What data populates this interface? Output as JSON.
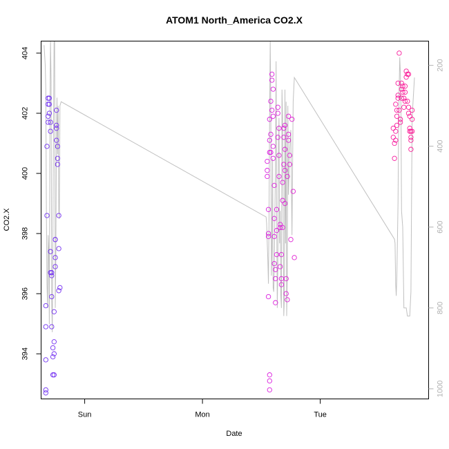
{
  "chart_data": {
    "type": "scatter",
    "title": "ATOM1 North_America CO2.X",
    "xlabel": "Date",
    "ylabel": "CO2.X",
    "x_ticks": [
      "Sun",
      "Mon",
      "Tue"
    ],
    "y_ticks": [
      "394",
      "396",
      "398",
      "400",
      "402",
      "404"
    ],
    "y2_ticks": [
      "200",
      "400",
      "600",
      "800",
      "1000"
    ],
    "xlim": [
      -0.37,
      2.92
    ],
    "ylim": [
      392.5,
      404.4
    ],
    "y2lim": [
      1025,
      140
    ],
    "grid": false,
    "colors": {
      "axis": "#000000",
      "secondary_line": "#c0c0c0",
      "secondary_axis": "#b0b0b0",
      "points_start": "#6a2ef0",
      "points_mid": "#d21ef0",
      "points_end": "#ff1a8c"
    },
    "series": [
      {
        "kind": "points",
        "values": [
          [
            -0.33,
            392.7
          ],
          [
            -0.33,
            392.8
          ],
          [
            -0.33,
            393.8
          ],
          [
            -0.33,
            394.9
          ],
          [
            -0.33,
            395.6
          ],
          [
            -0.32,
            398.6
          ],
          [
            -0.32,
            400.9
          ],
          [
            -0.31,
            401.7
          ],
          [
            -0.31,
            401.9
          ],
          [
            -0.31,
            402.3
          ],
          [
            -0.31,
            402.5
          ],
          [
            -0.3,
            402.5
          ],
          [
            -0.3,
            402.3
          ],
          [
            -0.3,
            402.0
          ],
          [
            -0.29,
            401.7
          ],
          [
            -0.29,
            401.4
          ],
          [
            -0.29,
            397.4
          ],
          [
            -0.29,
            396.7
          ],
          [
            -0.28,
            396.7
          ],
          [
            -0.28,
            396.6
          ],
          [
            -0.28,
            395.9
          ],
          [
            -0.28,
            394.9
          ],
          [
            -0.27,
            394.2
          ],
          [
            -0.27,
            393.9
          ],
          [
            -0.27,
            393.3
          ],
          [
            -0.26,
            393.3
          ],
          [
            -0.26,
            394.0
          ],
          [
            -0.26,
            394.4
          ],
          [
            -0.26,
            395.4
          ],
          [
            -0.25,
            396.9
          ],
          [
            -0.25,
            397.2
          ],
          [
            -0.25,
            397.8
          ],
          [
            -0.25,
            397.8
          ],
          [
            -0.24,
            401.6
          ],
          [
            -0.24,
            401.5
          ],
          [
            -0.24,
            402.1
          ],
          [
            -0.24,
            401.1
          ],
          [
            -0.23,
            400.9
          ],
          [
            -0.23,
            400.5
          ],
          [
            -0.23,
            400.3
          ],
          [
            -0.22,
            398.6
          ],
          [
            -0.22,
            397.5
          ],
          [
            -0.22,
            396.1
          ],
          [
            -0.21,
            396.2
          ],
          [
            1.55,
            399.9
          ],
          [
            1.55,
            400.1
          ],
          [
            1.55,
            400.4
          ],
          [
            1.56,
            398.8
          ],
          [
            1.56,
            398.0
          ],
          [
            1.56,
            397.9
          ],
          [
            1.56,
            395.9
          ],
          [
            1.57,
            400.7
          ],
          [
            1.57,
            401.1
          ],
          [
            1.57,
            401.8
          ],
          [
            1.57,
            393.1
          ],
          [
            1.57,
            392.8
          ],
          [
            1.57,
            393.3
          ],
          [
            1.58,
            402.4
          ],
          [
            1.58,
            401.3
          ],
          [
            1.58,
            400.7
          ],
          [
            1.59,
            402.1
          ],
          [
            1.59,
            403.3
          ],
          [
            1.59,
            403.1
          ],
          [
            1.6,
            402.8
          ],
          [
            1.6,
            401.9
          ],
          [
            1.6,
            400.9
          ],
          [
            1.6,
            400.5
          ],
          [
            1.61,
            399.6
          ],
          [
            1.61,
            398.5
          ],
          [
            1.61,
            397.9
          ],
          [
            1.61,
            397.0
          ],
          [
            1.62,
            396.8
          ],
          [
            1.62,
            396.5
          ],
          [
            1.62,
            395.7
          ],
          [
            1.63,
            397.3
          ],
          [
            1.63,
            398.1
          ],
          [
            1.63,
            398.8
          ],
          [
            1.64,
            401.2
          ],
          [
            1.64,
            402.2
          ],
          [
            1.64,
            402.0
          ],
          [
            1.65,
            401.5
          ],
          [
            1.65,
            400.6
          ],
          [
            1.65,
            399.9
          ],
          [
            1.66,
            398.3
          ],
          [
            1.66,
            398.2
          ],
          [
            1.66,
            396.9
          ],
          [
            1.67,
            396.5
          ],
          [
            1.67,
            396.3
          ],
          [
            1.67,
            397.3
          ],
          [
            1.68,
            398.2
          ],
          [
            1.68,
            399.1
          ],
          [
            1.68,
            399.7
          ],
          [
            1.69,
            400.3
          ],
          [
            1.69,
            401.2
          ],
          [
            1.69,
            401.5
          ],
          [
            1.7,
            400.8
          ],
          [
            1.7,
            401.6
          ],
          [
            1.7,
            400.1
          ],
          [
            1.7,
            399.0
          ],
          [
            1.71,
            396.5
          ],
          [
            1.71,
            396.0
          ],
          [
            1.72,
            395.8
          ],
          [
            1.72,
            399.9
          ],
          [
            1.73,
            401.1
          ],
          [
            1.73,
            401.9
          ],
          [
            1.73,
            401.3
          ],
          [
            1.74,
            400.6
          ],
          [
            1.74,
            400.3
          ],
          [
            1.75,
            397.8
          ],
          [
            1.76,
            401.8
          ],
          [
            1.77,
            399.4
          ],
          [
            1.78,
            397.2
          ],
          [
            2.62,
            401.2
          ],
          [
            2.62,
            401.5
          ],
          [
            2.63,
            401.0
          ],
          [
            2.63,
            400.5
          ],
          [
            2.64,
            401.4
          ],
          [
            2.64,
            401.1
          ],
          [
            2.64,
            402.3
          ],
          [
            2.65,
            401.9
          ],
          [
            2.65,
            401.6
          ],
          [
            2.65,
            402.1
          ],
          [
            2.66,
            402.6
          ],
          [
            2.66,
            402.5
          ],
          [
            2.66,
            403.0
          ],
          [
            2.67,
            404.0
          ],
          [
            2.67,
            402.1
          ],
          [
            2.68,
            401.7
          ],
          [
            2.68,
            401.8
          ],
          [
            2.69,
            402.5
          ],
          [
            2.69,
            402.8
          ],
          [
            2.69,
            403.0
          ],
          [
            2.7,
            402.9
          ],
          [
            2.7,
            402.7
          ],
          [
            2.71,
            402.5
          ],
          [
            2.71,
            402.2
          ],
          [
            2.72,
            402.4
          ],
          [
            2.72,
            402.7
          ],
          [
            2.72,
            402.9
          ],
          [
            2.73,
            403.2
          ],
          [
            2.73,
            403.4
          ],
          [
            2.74,
            403.3
          ],
          [
            2.74,
            402.4
          ],
          [
            2.75,
            403.3
          ],
          [
            2.75,
            402.2
          ],
          [
            2.75,
            402.0
          ],
          [
            2.76,
            401.9
          ],
          [
            2.76,
            401.5
          ],
          [
            2.76,
            401.4
          ],
          [
            2.77,
            401.4
          ],
          [
            2.77,
            401.2
          ],
          [
            2.77,
            400.8
          ],
          [
            2.77,
            401.1
          ],
          [
            2.78,
            401.4
          ],
          [
            2.78,
            401.8
          ],
          [
            2.78,
            402.1
          ]
        ]
      },
      {
        "kind": "line",
        "axis": "right",
        "values": [
          [
            -0.345,
            150
          ],
          [
            -0.335,
            200
          ],
          [
            -0.33,
            260
          ],
          [
            -0.325,
            580
          ],
          [
            -0.32,
            740
          ],
          [
            -0.315,
            800
          ],
          [
            -0.31,
            620
          ],
          [
            -0.305,
            660
          ],
          [
            -0.3,
            840
          ],
          [
            -0.295,
            320
          ],
          [
            -0.29,
            140
          ],
          [
            -0.285,
            240
          ],
          [
            -0.28,
            780
          ],
          [
            -0.275,
            860
          ],
          [
            -0.27,
            620
          ],
          [
            -0.265,
            360
          ],
          [
            -0.26,
            140
          ],
          [
            -0.255,
            140
          ],
          [
            -0.25,
            800
          ],
          [
            -0.245,
            680
          ],
          [
            -0.24,
            380
          ],
          [
            -0.235,
            280
          ],
          [
            -0.23,
            420
          ],
          [
            -0.225,
            300
          ],
          [
            -0.22,
            560
          ],
          [
            -0.215,
            580
          ],
          [
            -0.21,
            300
          ],
          [
            -0.2,
            290
          ],
          [
            1.54,
            575
          ],
          [
            1.545,
            590
          ],
          [
            1.55,
            640
          ],
          [
            1.555,
            680
          ],
          [
            1.56,
            740
          ],
          [
            1.565,
            600
          ],
          [
            1.57,
            330
          ],
          [
            1.575,
            140
          ],
          [
            1.58,
            300
          ],
          [
            1.585,
            720
          ],
          [
            1.59,
            660
          ],
          [
            1.595,
            430
          ],
          [
            1.6,
            750
          ],
          [
            1.605,
            760
          ],
          [
            1.61,
            700
          ],
          [
            1.615,
            560
          ],
          [
            1.62,
            450
          ],
          [
            1.625,
            190
          ],
          [
            1.63,
            560
          ],
          [
            1.635,
            800
          ],
          [
            1.64,
            700
          ],
          [
            1.645,
            400
          ],
          [
            1.65,
            330
          ],
          [
            1.655,
            640
          ],
          [
            1.66,
            560
          ],
          [
            1.665,
            770
          ],
          [
            1.67,
            800
          ],
          [
            1.675,
            260
          ],
          [
            1.68,
            330
          ],
          [
            1.685,
            560
          ],
          [
            1.69,
            820
          ],
          [
            1.695,
            780
          ],
          [
            1.7,
            260
          ],
          [
            1.705,
            640
          ],
          [
            1.71,
            290
          ],
          [
            1.715,
            820
          ],
          [
            1.72,
            720
          ],
          [
            1.725,
            300
          ],
          [
            1.73,
            520
          ],
          [
            1.74,
            410
          ],
          [
            1.75,
            360
          ],
          [
            1.76,
            620
          ],
          [
            1.77,
            290
          ],
          [
            1.78,
            230
          ],
          [
            2.63,
            630
          ],
          [
            2.635,
            640
          ],
          [
            2.64,
            740
          ],
          [
            2.645,
            770
          ],
          [
            2.65,
            720
          ],
          [
            2.655,
            640
          ],
          [
            2.66,
            540
          ],
          [
            2.665,
            360
          ],
          [
            2.67,
            250
          ],
          [
            2.675,
            180
          ],
          [
            2.68,
            220
          ],
          [
            2.685,
            300
          ],
          [
            2.69,
            560
          ],
          [
            2.7,
            600
          ],
          [
            2.71,
            800
          ],
          [
            2.73,
            800
          ],
          [
            2.74,
            820
          ],
          [
            2.76,
            820
          ],
          [
            2.77,
            760
          ],
          [
            2.78,
            330
          ],
          [
            2.79,
            280
          ],
          [
            2.8,
            230
          ]
        ]
      }
    ]
  }
}
